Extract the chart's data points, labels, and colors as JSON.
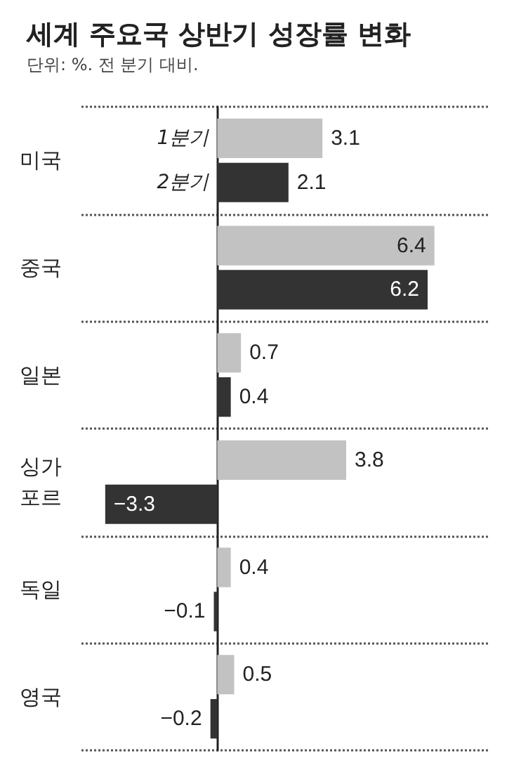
{
  "chart_data": {
    "type": "bar",
    "orientation": "horizontal",
    "title": "세계 주요국 상반기 성장률 변화",
    "subtitle": "단위: %. 전 분기 대비.",
    "categories": [
      "미국",
      "중국",
      "일본",
      "싱가포르",
      "독일",
      "영국"
    ],
    "series": [
      {
        "name": "1분기",
        "color": "#c2c2c2",
        "values": [
          3.1,
          6.4,
          0.7,
          3.8,
          0.4,
          0.5
        ],
        "value_labels": [
          "3.1",
          "6.4",
          "0.7",
          "3.8",
          "0.4",
          "0.5"
        ]
      },
      {
        "name": "2분기",
        "color": "#333333",
        "values": [
          2.1,
          6.2,
          0.4,
          -3.3,
          -0.1,
          -0.2
        ],
        "value_labels": [
          "2.1",
          "6.2",
          "0.4",
          "−3.3",
          "−0.1",
          "−0.2"
        ]
      }
    ],
    "grid": "y",
    "legend": false
  }
}
